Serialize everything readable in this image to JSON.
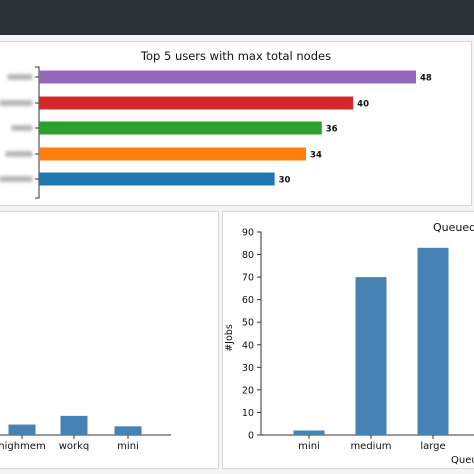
{
  "chart_data": [
    {
      "type": "bar",
      "orientation": "horizontal",
      "title": "Top 5 users with max total nodes",
      "categories": [
        "",
        "",
        "",
        "",
        ""
      ],
      "values": [
        48,
        40,
        36,
        34,
        30
      ],
      "colors": [
        "#9467bd",
        "#d62728",
        "#2ca02c",
        "#ff7f0e",
        "#1f77b4"
      ],
      "xlim": [
        0,
        48
      ],
      "grid": false
    },
    {
      "type": "bar",
      "title": "",
      "categories": [
        "highmem",
        "workq",
        "mini"
      ],
      "values": [
        6,
        11,
        5
      ],
      "color": "#4682b4",
      "grid": false
    },
    {
      "type": "bar",
      "title": "Queued",
      "xlabel": "Queue",
      "ylabel": "#Jobs",
      "categories": [
        "mini",
        "medium",
        "large"
      ],
      "values": [
        2,
        70,
        83
      ],
      "yticks": [
        0,
        10,
        20,
        30,
        40,
        50,
        60,
        70,
        80,
        90
      ],
      "ylim": [
        0,
        90
      ],
      "color": "#4682b4",
      "grid": false
    }
  ]
}
